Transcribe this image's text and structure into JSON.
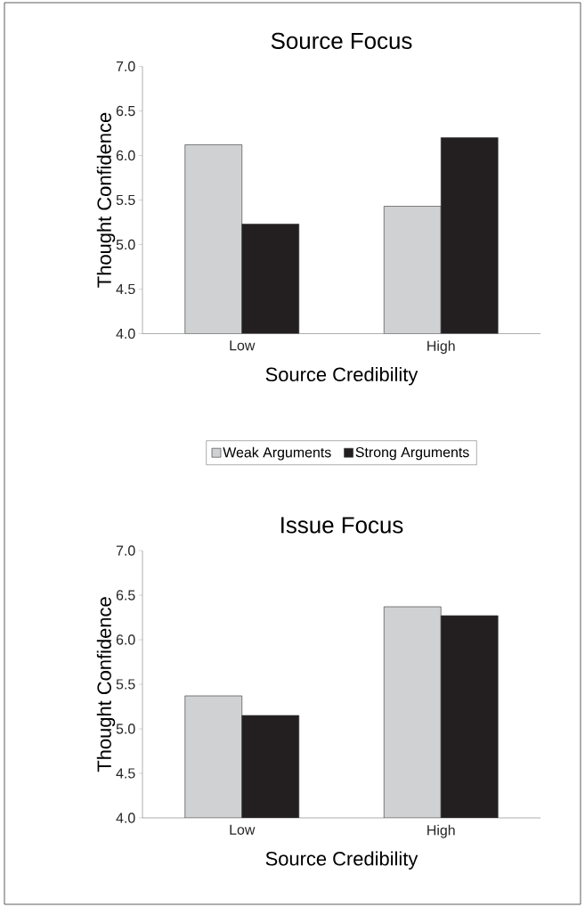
{
  "chart_data": [
    {
      "type": "bar",
      "title": "Source Focus",
      "xlabel": "Source Credibility",
      "ylabel": "Thought Confidence",
      "categories": [
        "Low",
        "High"
      ],
      "series": [
        {
          "name": "Weak Arguments",
          "color": "#d0d1d3",
          "values": [
            6.12,
            5.43
          ]
        },
        {
          "name": "Strong Arguments",
          "color": "#231f20",
          "values": [
            5.23,
            6.2
          ]
        }
      ],
      "ylim": [
        4.0,
        7.0
      ],
      "yticks": [
        {
          "value": 4,
          "label": "4.0"
        },
        {
          "value": 4.5,
          "label": "4.5"
        },
        {
          "value": 5,
          "label": "5.0"
        },
        {
          "value": 5.5,
          "label": "5.5"
        },
        {
          "value": 6,
          "label": "6.0"
        },
        {
          "value": 6.5,
          "label": "6.5"
        },
        {
          "value": 7,
          "label": "7.0"
        }
      ],
      "legend": "bottom"
    },
    {
      "type": "bar",
      "title": "Issue Focus",
      "xlabel": "Source Credibility",
      "ylabel": "Thought Confidence",
      "categories": [
        "Low",
        "High"
      ],
      "series": [
        {
          "color": "#d0d1d3",
          "values": [
            5.37,
            6.37
          ]
        },
        {
          "color": "#231f20",
          "values": [
            5.15,
            6.27
          ]
        }
      ],
      "ylim": [
        4.0,
        7.0
      ],
      "yticks": [
        {
          "value": 4,
          "label": "4.0"
        },
        {
          "value": 4.5,
          "label": "4.5"
        },
        {
          "value": 5,
          "label": "5.0"
        },
        {
          "value": 5.5,
          "label": "5.5"
        },
        {
          "value": 6,
          "label": "6.0"
        },
        {
          "value": 6.5,
          "label": "6.5"
        },
        {
          "value": 7,
          "label": "7.0"
        }
      ]
    }
  ]
}
